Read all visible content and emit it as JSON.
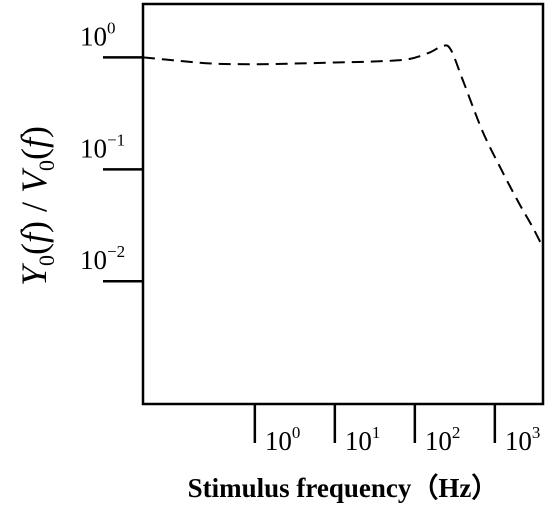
{
  "chart_data": {
    "type": "line",
    "title": "",
    "xlabel": "Stimulus frequency（Hz）",
    "ylabel": {
      "Y": "Y",
      "sub1": "0",
      "paren1": "(",
      "f1": "f",
      "slash": ") / ",
      "V": "V",
      "sub2": "0",
      "paren2": "(",
      "f2": "f",
      "close": ")"
    },
    "x_scale": "log",
    "y_scale": "log",
    "xlim": [
      0.04,
      4000
    ],
    "ylim": [
      0.0008,
      3
    ],
    "x_ticks": [
      {
        "value": 1,
        "base": "10",
        "exp": "0"
      },
      {
        "value": 10,
        "base": "10",
        "exp": "1"
      },
      {
        "value": 100,
        "base": "10",
        "exp": "2"
      },
      {
        "value": 1000,
        "base": "10",
        "exp": "3"
      }
    ],
    "y_ticks": [
      {
        "value": 1,
        "base": "10",
        "exp": "0"
      },
      {
        "value": 0.1,
        "base": "10",
        "exp": "−1"
      },
      {
        "value": 0.01,
        "base": "10",
        "exp": "−2"
      }
    ],
    "grid": false,
    "line_style": "dashed",
    "line_color": "#000000",
    "series": [
      {
        "x": [
          0.04,
          0.1,
          0.3,
          1,
          3,
          10,
          30,
          80,
          150,
          220,
          280,
          400,
          700,
          1200,
          2000,
          3000,
          4000
        ],
        "values": [
          1.0,
          0.94,
          0.88,
          0.87,
          0.88,
          0.9,
          0.92,
          0.96,
          1.1,
          1.26,
          1.18,
          0.62,
          0.22,
          0.1,
          0.05,
          0.03,
          0.02
        ]
      }
    ]
  }
}
